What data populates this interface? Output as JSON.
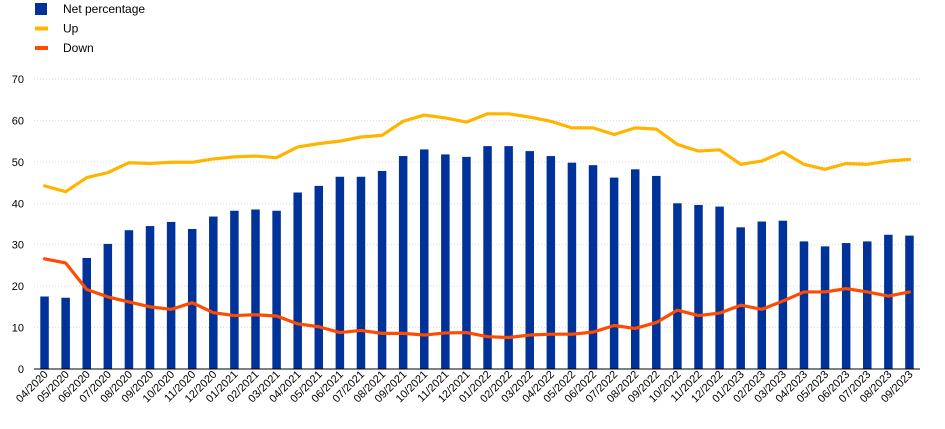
{
  "chart_data": {
    "type": "bar",
    "categories": [
      "04/2020",
      "05/2020",
      "06/2020",
      "07/2020",
      "08/2020",
      "09/2020",
      "10/2020",
      "11/2020",
      "12/2020",
      "01/2021",
      "02/2021",
      "03/2021",
      "04/2021",
      "05/2021",
      "06/2021",
      "07/2021",
      "08/2021",
      "09/2021",
      "10/2021",
      "11/2021",
      "12/2021",
      "01/2022",
      "02/2022",
      "03/2022",
      "04/2022",
      "05/2022",
      "06/2022",
      "07/2022",
      "08/2022",
      "09/2022",
      "10/2022",
      "11/2022",
      "12/2022",
      "01/2023",
      "02/2023",
      "03/2023",
      "04/2023",
      "05/2023",
      "06/2023",
      "07/2023",
      "08/2023",
      "09/2023"
    ],
    "series": [
      {
        "name": "Net percentage",
        "type": "bar",
        "color": "#003299",
        "values": [
          17.5,
          17.2,
          26.8,
          30.2,
          33.5,
          34.5,
          35.5,
          33.8,
          36.8,
          38.2,
          38.5,
          38.2,
          42.6,
          44.2,
          46.4,
          46.4,
          47.8,
          51.4,
          53.0,
          51.8,
          51.2,
          53.8,
          53.8,
          52.6,
          51.4,
          49.8,
          49.2,
          46.2,
          48.2,
          46.6,
          40.0,
          39.6,
          39.2,
          34.2,
          35.6,
          35.8,
          30.8,
          29.6,
          30.4,
          30.8,
          32.4,
          32.2
        ]
      },
      {
        "name": "Up",
        "type": "line",
        "color": "#FFB400",
        "values": [
          44.2,
          42.8,
          46.2,
          47.4,
          49.8,
          49.6,
          49.9,
          49.9,
          50.7,
          51.2,
          51.4,
          51.0,
          53.6,
          54.4,
          55.0,
          56.0,
          56.4,
          59.8,
          61.3,
          60.6,
          59.6,
          61.6,
          61.6,
          60.8,
          59.8,
          58.2,
          58.2,
          56.6,
          58.2,
          57.9,
          54.2,
          52.6,
          52.9,
          49.4,
          50.2,
          52.4,
          49.4,
          48.2,
          49.6,
          49.4,
          50.2,
          50.6
        ]
      },
      {
        "name": "Down",
        "type": "line",
        "color": "#FF4B00",
        "values": [
          26.6,
          25.6,
          19.2,
          17.4,
          16.2,
          15.0,
          14.4,
          16.0,
          13.6,
          12.9,
          13.1,
          12.8,
          10.9,
          10.2,
          8.8,
          9.3,
          8.6,
          8.6,
          8.2,
          8.7,
          8.8,
          7.8,
          7.6,
          8.2,
          8.4,
          8.4,
          8.9,
          10.5,
          9.8,
          11.2,
          14.2,
          12.9,
          13.5,
          15.4,
          14.4,
          16.4,
          18.6,
          18.6,
          19.4,
          18.6,
          17.6,
          18.6
        ]
      }
    ],
    "legend": {
      "position": "top-left",
      "items": [
        {
          "label": "Net percentage",
          "color": "#003299",
          "marker": "square"
        },
        {
          "label": "Up",
          "color": "#FFB400",
          "marker": "line"
        },
        {
          "label": "Down",
          "color": "#FF4B00",
          "marker": "line"
        }
      ]
    },
    "title": "",
    "xlabel": "",
    "ylabel": "",
    "ylim": [
      0,
      70
    ],
    "y_ticks": [
      0,
      10,
      20,
      30,
      40,
      50,
      60,
      70
    ],
    "grid": true
  }
}
